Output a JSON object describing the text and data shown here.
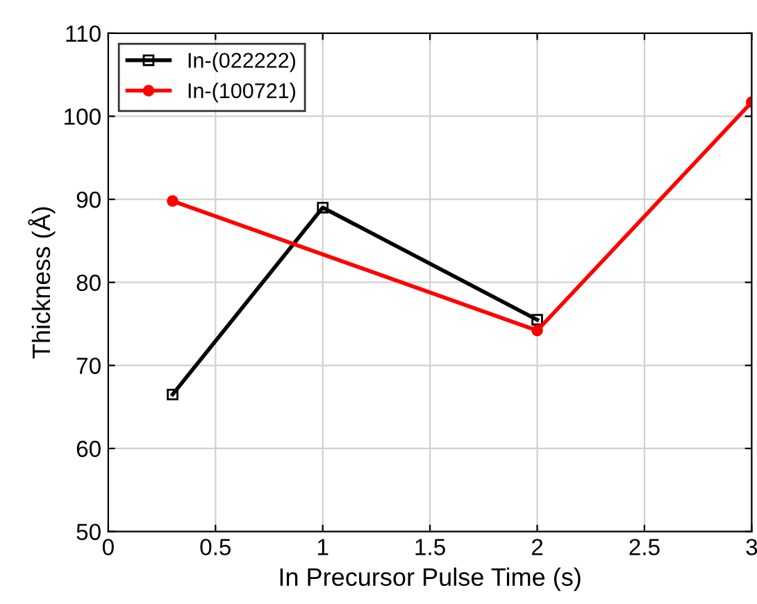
{
  "chart_data": {
    "type": "line",
    "xlabel": "In Precursor Pulse Time (s)",
    "ylabel": "Thickness (Å)",
    "series": [
      {
        "name": "In-(022222)",
        "color": "#000000",
        "marker": "square",
        "x": [
          0.3,
          1,
          2
        ],
        "values": [
          66.5,
          89.0,
          75.5
        ]
      },
      {
        "name": "In-(100721)",
        "color": "#ff0000",
        "marker": "circle",
        "x": [
          0.3,
          2,
          3
        ],
        "values": [
          89.8,
          74.2,
          101.7
        ]
      }
    ],
    "xlim": [
      0,
      3
    ],
    "xticks": [
      0,
      0.5,
      1,
      1.5,
      2,
      2.5,
      3
    ],
    "ylim": [
      50,
      110
    ],
    "yticks": [
      50,
      60,
      70,
      80,
      90,
      100,
      110
    ],
    "grid": true,
    "legend": "top left",
    "line_style": "solid"
  }
}
